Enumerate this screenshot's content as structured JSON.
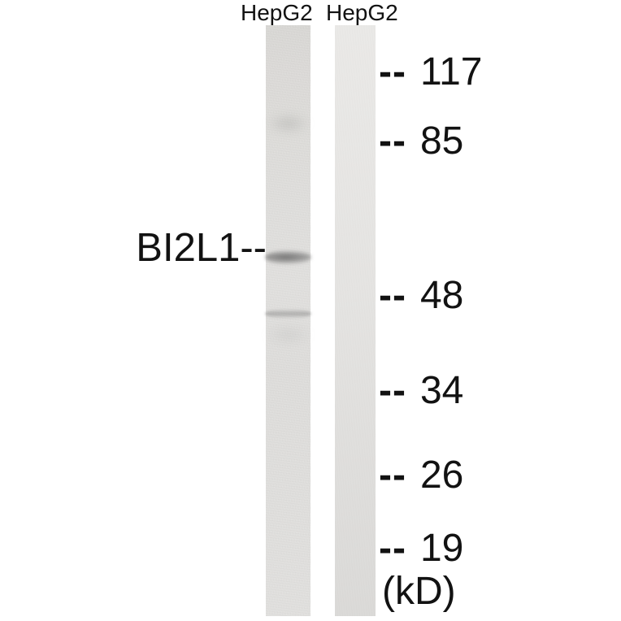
{
  "figure": {
    "type": "western-blot",
    "lanes": [
      {
        "label": "HepG2"
      },
      {
        "label": "HepG2"
      }
    ],
    "target": {
      "label": "BI2L1",
      "pointer": "--"
    },
    "markers": [
      {
        "dashes": "--",
        "value": "117"
      },
      {
        "dashes": "--",
        "value": "85"
      },
      {
        "dashes": "--",
        "value": "48"
      },
      {
        "dashes": "--",
        "value": "34"
      },
      {
        "dashes": "--",
        "value": "26"
      },
      {
        "dashes": "--",
        "value": "19"
      }
    ],
    "unit_label": "(kD)",
    "colors": {
      "background": "#ffffff",
      "text": "#121212",
      "lane1_base": "#dfdedc",
      "lane2_base": "#e4e3e1",
      "band_dark": "#6e6e6e"
    }
  }
}
